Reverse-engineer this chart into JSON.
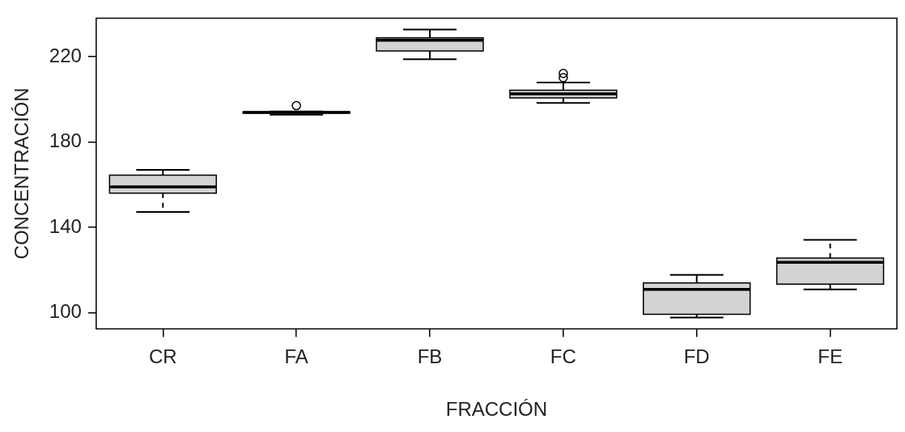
{
  "chart_data": {
    "type": "box",
    "xlabel": "FRACCIÓN",
    "ylabel": "CONCENTRACIÓN",
    "categories": [
      "CR",
      "FA",
      "FB",
      "FC",
      "FD",
      "FE"
    ],
    "ylim": [
      92.5,
      238
    ],
    "yticks": [
      100,
      140,
      180,
      220
    ],
    "grid": false,
    "series": [
      {
        "color": "#d3d3d3",
        "boxes": [
          {
            "low": 147.2,
            "q1": 156,
            "median": 159,
            "q3": 164.5,
            "high": 166.9
          },
          {
            "low": 192.8,
            "q1": 193.5,
            "median": 193.8,
            "q3": 194.1,
            "high": 194.3,
            "outliers": [
              197
            ]
          },
          {
            "low": 218.7,
            "q1": 222.6,
            "median": 227.6,
            "q3": 228.8,
            "high": 232.7
          },
          {
            "low": 198.3,
            "q1": 200.6,
            "median": 202.5,
            "q3": 204.2,
            "high": 207.8,
            "outliers": [
              210.1,
              212.1
            ]
          },
          {
            "low": 97.8,
            "q1": 99.3,
            "median": 110.9,
            "q3": 114,
            "high": 117.8
          },
          {
            "low": 110.9,
            "q1": 113.4,
            "median": 123.6,
            "q3": 125.6,
            "high": 134.1
          }
        ]
      }
    ]
  }
}
